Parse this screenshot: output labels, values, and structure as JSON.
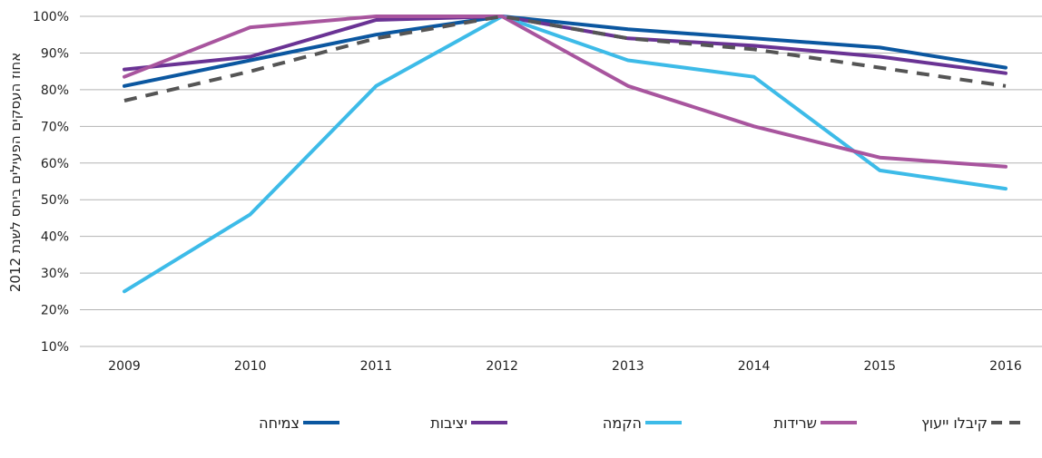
{
  "chart_data": {
    "type": "line",
    "ylabel": "אחוז העסקים הפעילים ביחס לשנת 2012",
    "xlabel": "",
    "ylim": [
      10,
      100
    ],
    "yticks": [
      10,
      20,
      30,
      40,
      50,
      60,
      70,
      80,
      90,
      100
    ],
    "ytick_labels": [
      "10%",
      "20%",
      "30%",
      "40%",
      "50%",
      "60%",
      "70%",
      "80%",
      "90%",
      "100%"
    ],
    "categories": [
      "2009",
      "2010",
      "2011",
      "2012",
      "2013",
      "2014",
      "2015",
      "2016"
    ],
    "grid": "horizontal",
    "legend_position": "bottom",
    "series": [
      {
        "name": "צמיחה",
        "color": "#0b57a0",
        "dashed": false,
        "values": [
          81,
          88,
          95,
          100,
          96.5,
          94,
          91.5,
          86
        ]
      },
      {
        "name": "יציבות",
        "color": "#6a3394",
        "dashed": false,
        "values": [
          85.5,
          89,
          99,
          100,
          94,
          92,
          89,
          84.5
        ]
      },
      {
        "name": "הקמה",
        "color": "#3dbbe8",
        "dashed": false,
        "values": [
          25,
          46,
          81,
          100,
          88,
          83.5,
          58,
          53
        ]
      },
      {
        "name": "שרידות",
        "color": "#a8559e",
        "dashed": false,
        "values": [
          83.5,
          97,
          100,
          100,
          81,
          70,
          61.5,
          59
        ]
      },
      {
        "name": "קיבלו ייעוץ",
        "color": "#555555",
        "dashed": true,
        "values": [
          77,
          85,
          94,
          100,
          94,
          91,
          86,
          81
        ]
      }
    ]
  }
}
